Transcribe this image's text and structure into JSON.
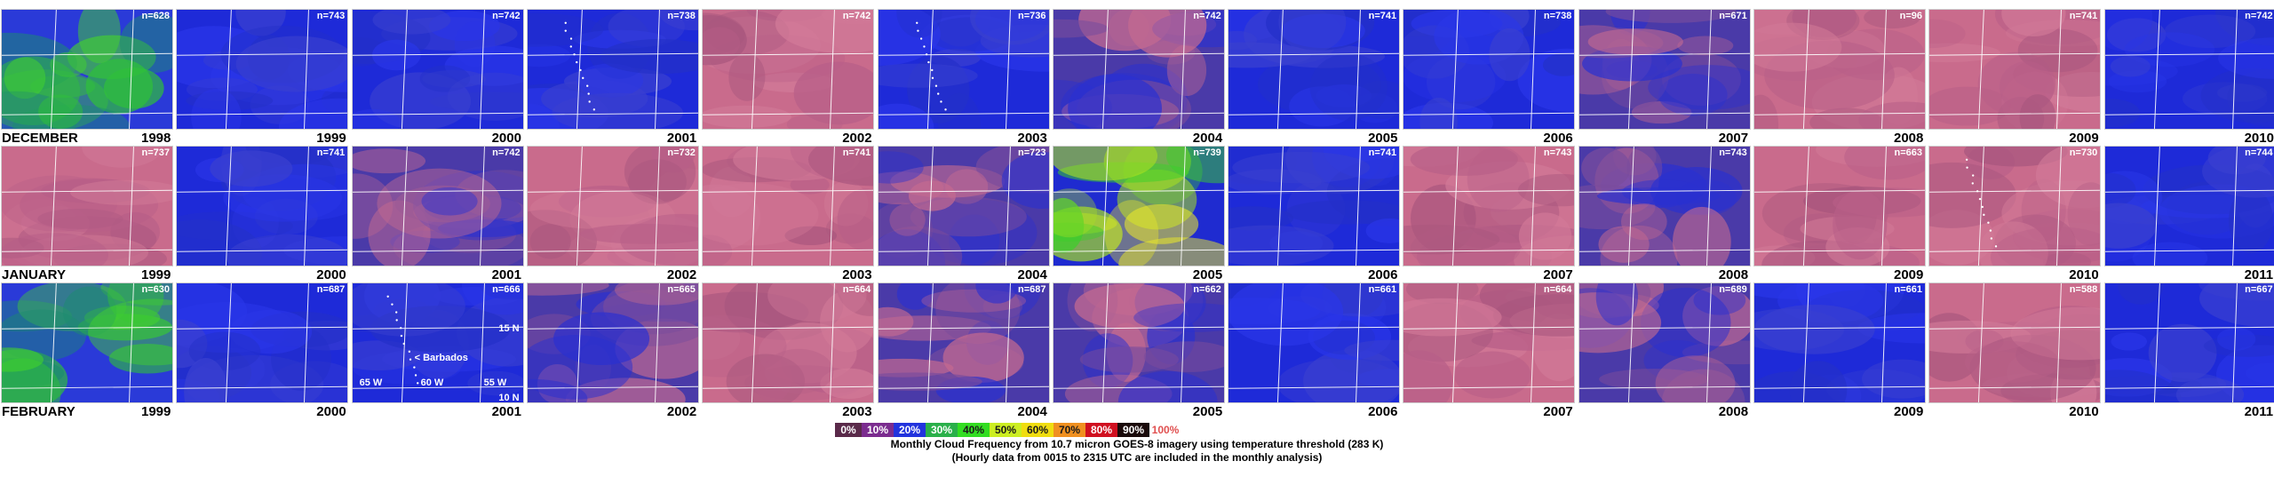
{
  "rows": [
    {
      "month": "DECEMBER",
      "panels": [
        {
          "year": "1998",
          "n": "n=628",
          "tone": "green"
        },
        {
          "year": "1999",
          "n": "n=743",
          "tone": "blue"
        },
        {
          "year": "2000",
          "n": "n=742",
          "tone": "blue"
        },
        {
          "year": "2001",
          "n": "n=738",
          "tone": "blue"
        },
        {
          "year": "2002",
          "n": "n=742",
          "tone": "pink"
        },
        {
          "year": "2003",
          "n": "n=736",
          "tone": "blue"
        },
        {
          "year": "2004",
          "n": "n=742",
          "tone": "mixed"
        },
        {
          "year": "2005",
          "n": "n=741",
          "tone": "blue"
        },
        {
          "year": "2006",
          "n": "n=738",
          "tone": "blue"
        },
        {
          "year": "2007",
          "n": "n=671",
          "tone": "mixed"
        },
        {
          "year": "2008",
          "n": "n=96",
          "tone": "pink"
        },
        {
          "year": "2009",
          "n": "n=741",
          "tone": "pink"
        },
        {
          "year": "2010",
          "n": "n=742",
          "tone": "blue"
        }
      ]
    },
    {
      "month": "JANUARY",
      "panels": [
        {
          "year": "1999",
          "n": "n=737",
          "tone": "pink"
        },
        {
          "year": "2000",
          "n": "n=741",
          "tone": "blue"
        },
        {
          "year": "2001",
          "n": "n=742",
          "tone": "mixed"
        },
        {
          "year": "2002",
          "n": "n=732",
          "tone": "pink"
        },
        {
          "year": "2003",
          "n": "n=741",
          "tone": "pink"
        },
        {
          "year": "2004",
          "n": "n=723",
          "tone": "mixed"
        },
        {
          "year": "2005",
          "n": "n=739",
          "tone": "yellow"
        },
        {
          "year": "2006",
          "n": "n=741",
          "tone": "blue"
        },
        {
          "year": "2007",
          "n": "n=743",
          "tone": "pink"
        },
        {
          "year": "2008",
          "n": "n=743",
          "tone": "mixed"
        },
        {
          "year": "2009",
          "n": "n=663",
          "tone": "pink"
        },
        {
          "year": "2010",
          "n": "n=730",
          "tone": "pink"
        },
        {
          "year": "2011",
          "n": "n=744",
          "tone": "blue"
        }
      ]
    },
    {
      "month": "FEBRUARY",
      "panels": [
        {
          "year": "1999",
          "n": "n=630",
          "tone": "green"
        },
        {
          "year": "2000",
          "n": "n=687",
          "tone": "blue"
        },
        {
          "year": "2001",
          "n": "n=666",
          "tone": "blue"
        },
        {
          "year": "2002",
          "n": "n=665",
          "tone": "mixed"
        },
        {
          "year": "2003",
          "n": "n=664",
          "tone": "pink"
        },
        {
          "year": "2004",
          "n": "n=687",
          "tone": "mixed"
        },
        {
          "year": "2005",
          "n": "n=662",
          "tone": "mixed"
        },
        {
          "year": "2006",
          "n": "n=661",
          "tone": "blue"
        },
        {
          "year": "2007",
          "n": "n=664",
          "tone": "pink"
        },
        {
          "year": "2008",
          "n": "n=689",
          "tone": "mixed"
        },
        {
          "year": "2009",
          "n": "n=661",
          "tone": "blue"
        },
        {
          "year": "2010",
          "n": "n=588",
          "tone": "pink"
        },
        {
          "year": "2011",
          "n": "n=667",
          "tone": "blue"
        }
      ]
    }
  ],
  "map_labels": {
    "barbados": "< Barbados",
    "lat": "15 N",
    "lat2": "10 N",
    "lon1": "65 W",
    "lon2": "60 W",
    "lon3": "55 W"
  },
  "legend": [
    {
      "label": "0%",
      "color": "#5a2a4a"
    },
    {
      "label": "10%",
      "color": "#7b2c8f"
    },
    {
      "label": "20%",
      "color": "#2233dd"
    },
    {
      "label": "30%",
      "color": "#2ab04a"
    },
    {
      "label": "40%",
      "color": "#33dd22"
    },
    {
      "label": "50%",
      "color": "#ccee22"
    },
    {
      "label": "60%",
      "color": "#f0dd10"
    },
    {
      "label": "70%",
      "color": "#f09020"
    },
    {
      "label": "80%",
      "color": "#d01020"
    },
    {
      "label": "90%",
      "color": "#1a0a0a"
    },
    {
      "label": "100%",
      "color": "#ffffff"
    }
  ],
  "caption_line1": "Monthly Cloud Frequency from 10.7 micron GOES-8 imagery using temperature threshold (283 K)",
  "caption_line2": "(Hourly data from 0015 to 2315 UTC are included in the monthly analysis)"
}
